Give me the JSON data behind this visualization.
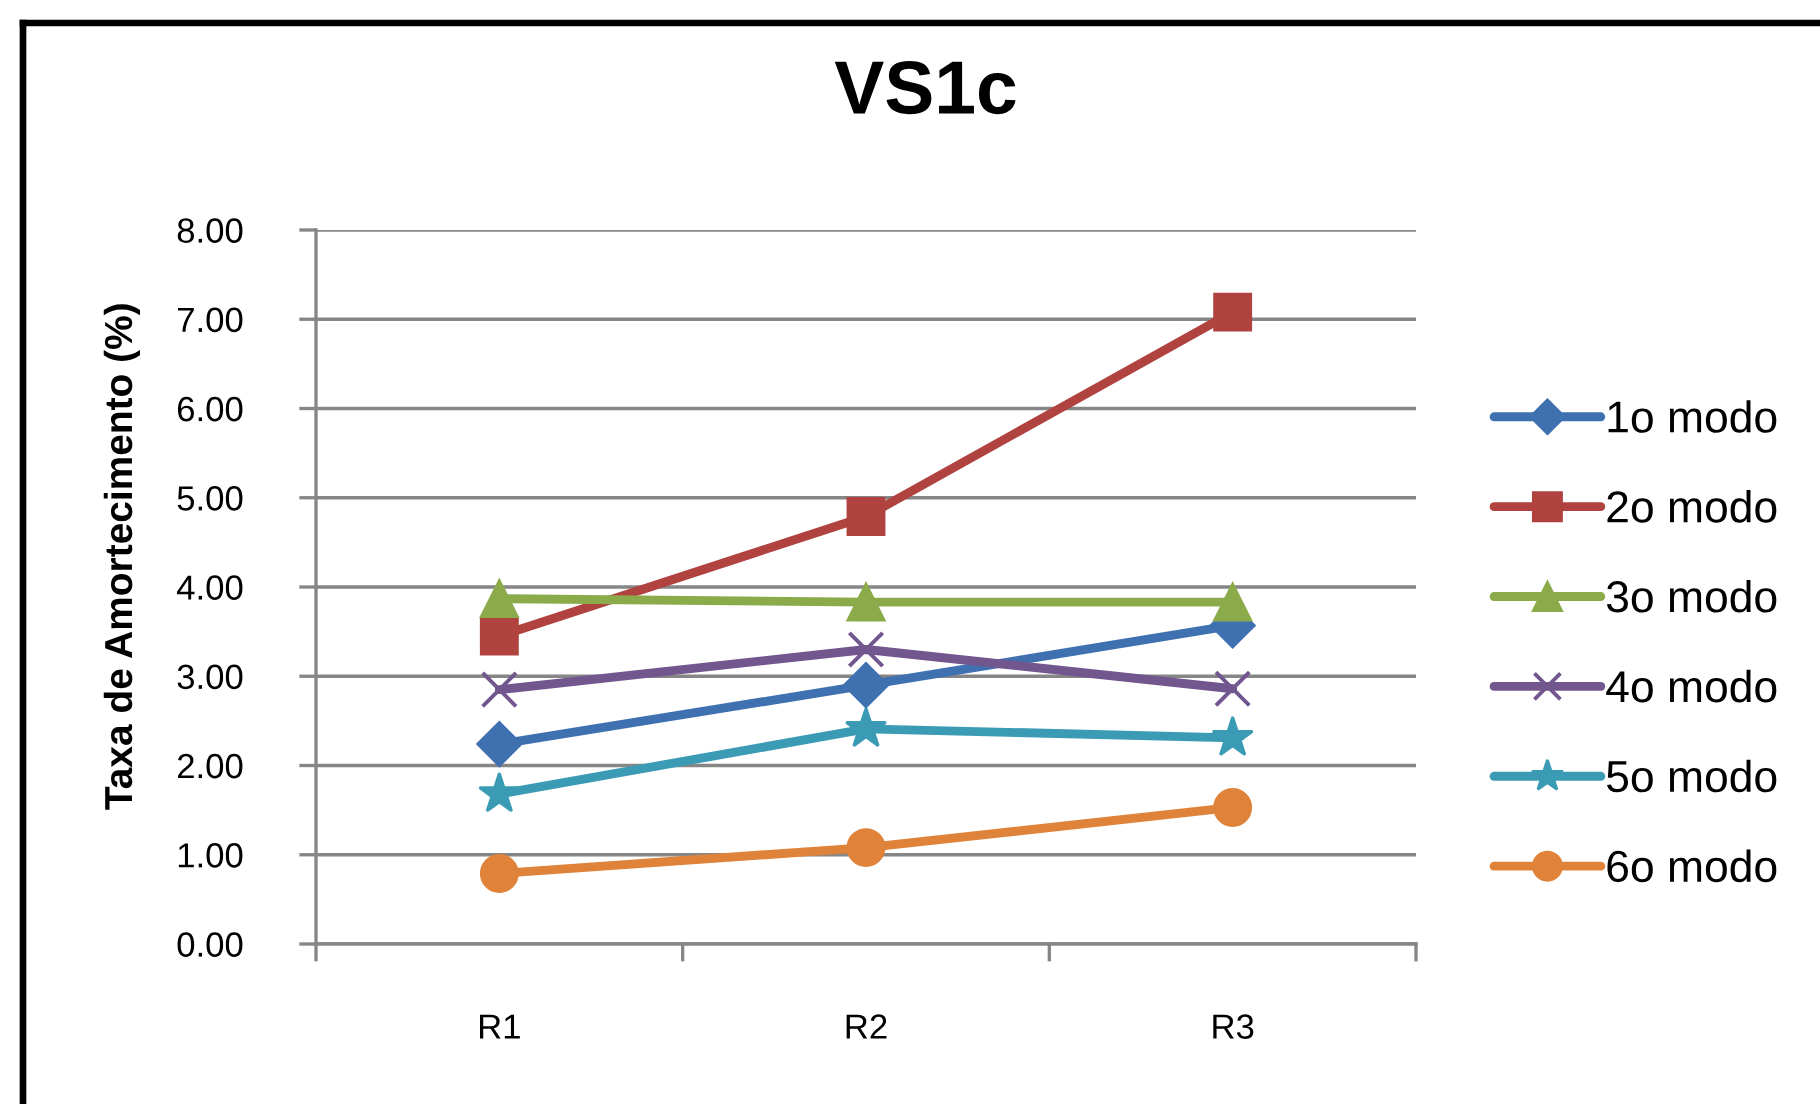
{
  "chart_data": {
    "type": "line",
    "title": "VS1c",
    "ylabel": "Taxa de Amortecimento (%)",
    "categories": [
      "R1",
      "R2",
      "R3"
    ],
    "series": [
      {
        "name": "1o modo",
        "color": "#3f70b0",
        "marker": "diamond",
        "values": [
          2.24,
          2.9,
          3.57
        ]
      },
      {
        "name": "2o modo",
        "color": "#b0423f",
        "marker": "square",
        "values": [
          3.45,
          4.79,
          7.08
        ]
      },
      {
        "name": "3o modo",
        "color": "#8bab4b",
        "marker": "triangle",
        "values": [
          3.87,
          3.83,
          3.83
        ]
      },
      {
        "name": "4o modo",
        "color": "#72578f",
        "marker": "cross",
        "values": [
          2.85,
          3.3,
          2.86
        ]
      },
      {
        "name": "5o modo",
        "color": "#3b9bb5",
        "marker": "star",
        "values": [
          1.68,
          2.41,
          2.31
        ]
      },
      {
        "name": "6o modo",
        "color": "#e0833a",
        "marker": "circle",
        "values": [
          0.79,
          1.08,
          1.53
        ]
      }
    ],
    "ylim": [
      0,
      8
    ],
    "yticks": [
      {
        "value": 0,
        "label": "0.00"
      },
      {
        "value": 1,
        "label": "1.00"
      },
      {
        "value": 2,
        "label": "2.00"
      },
      {
        "value": 3,
        "label": "3.00"
      },
      {
        "value": 4,
        "label": "4.00"
      },
      {
        "value": 5,
        "label": "5.00"
      },
      {
        "value": 6,
        "label": "6.00"
      },
      {
        "value": 7,
        "label": "7.00"
      },
      {
        "value": 8,
        "label": "8.00"
      }
    ],
    "grid": "y",
    "legend": "right",
    "line_style": "solid"
  }
}
